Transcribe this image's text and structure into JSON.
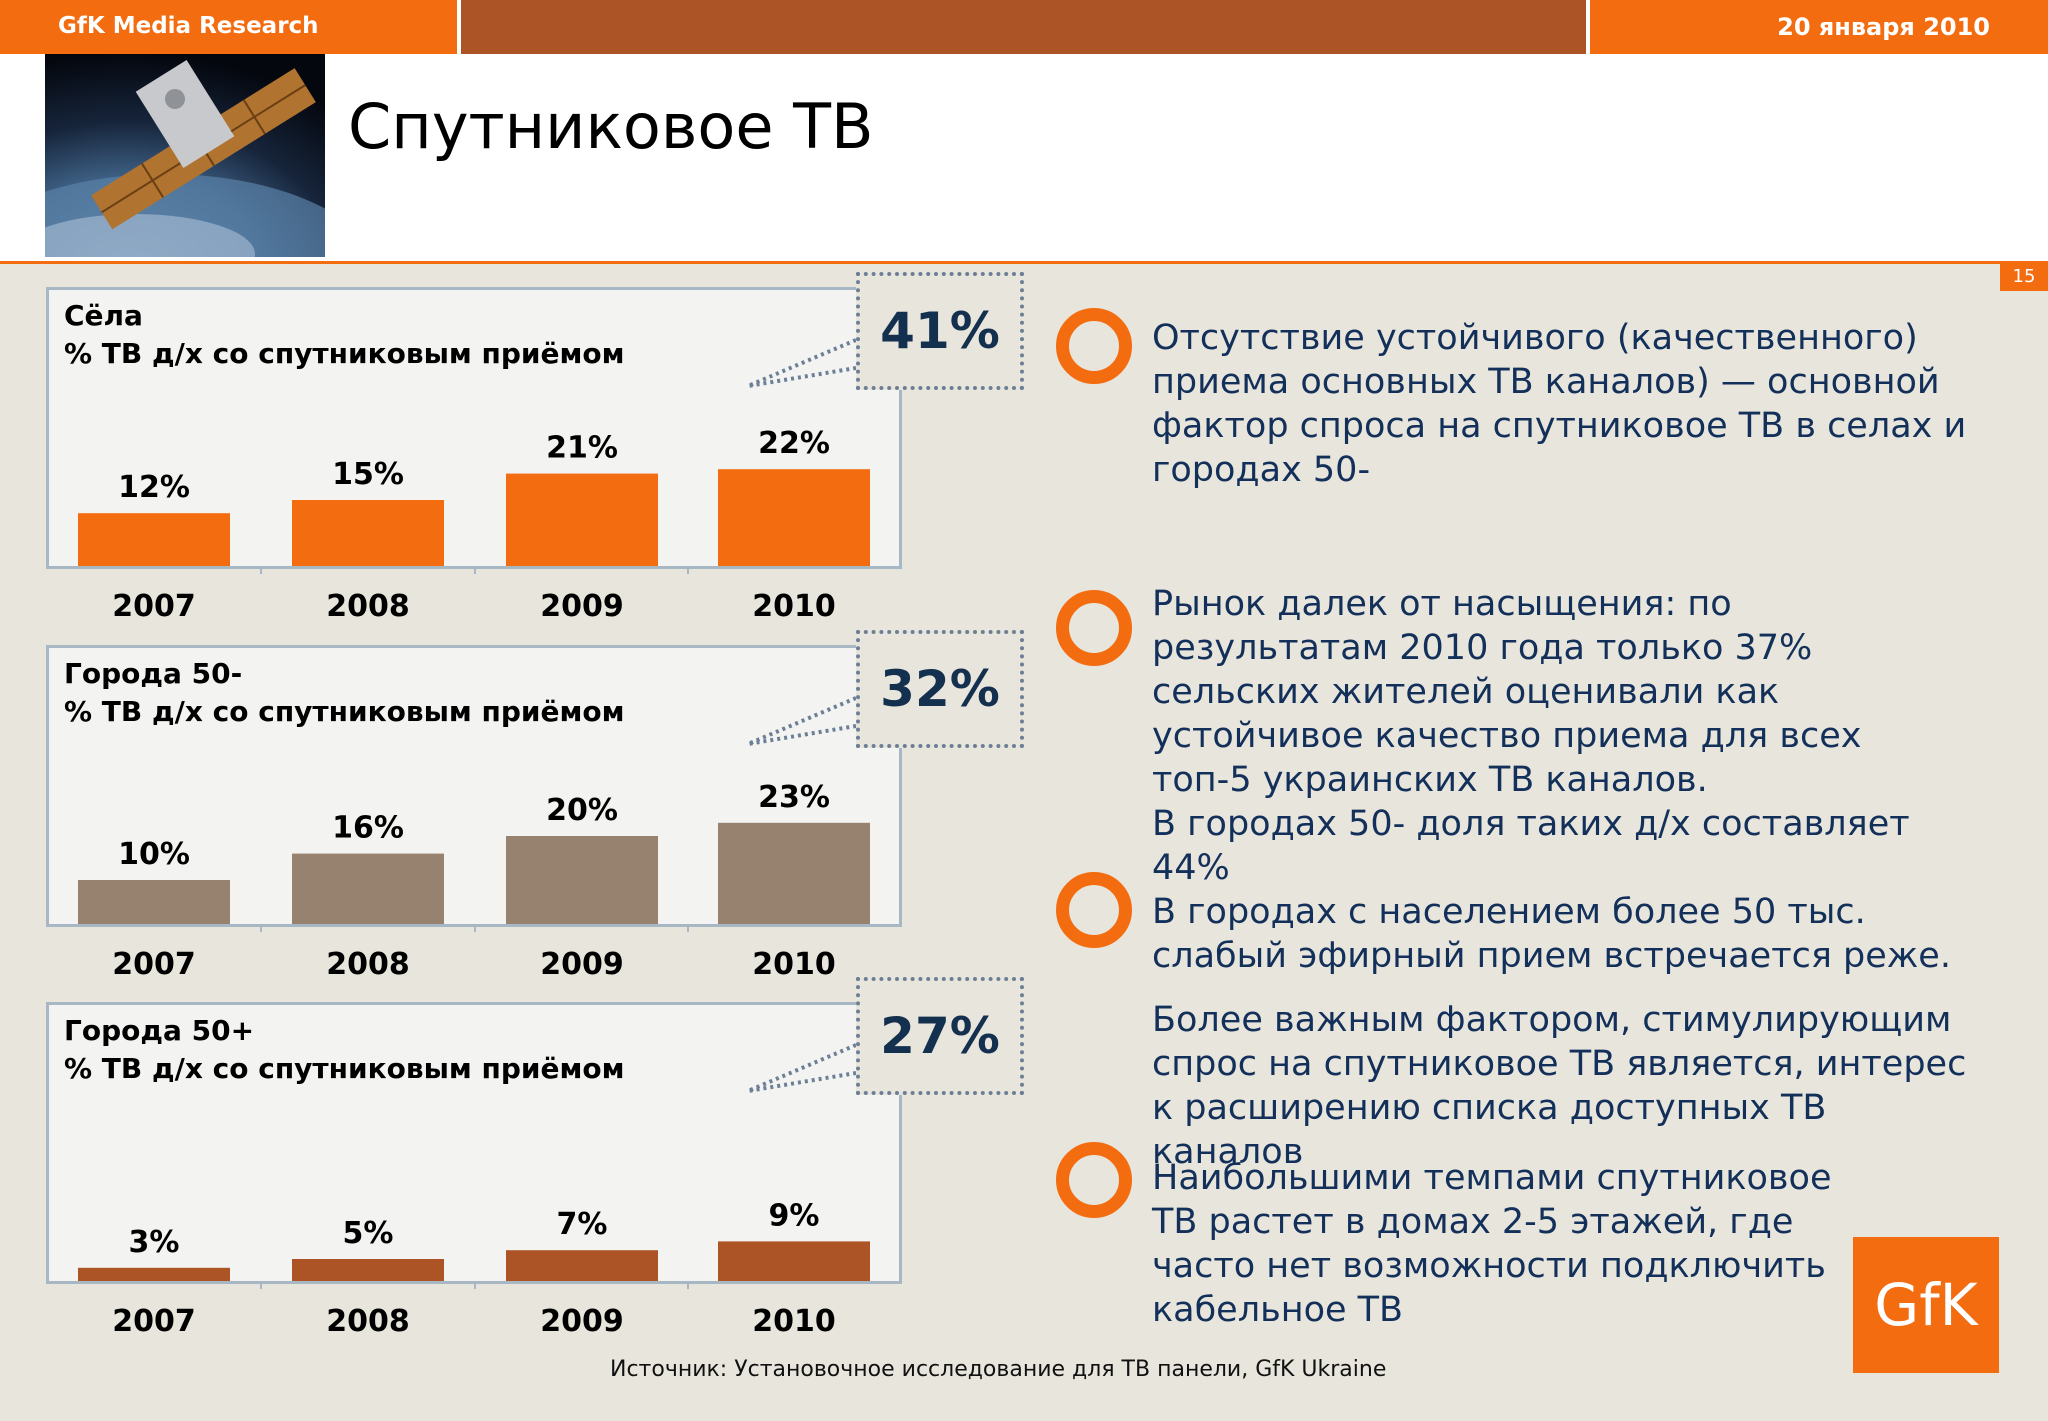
{
  "header": {
    "brand": "GfK Media Research",
    "date": "20 января 2010"
  },
  "title": "Спутниковое ТВ",
  "page_number": "15",
  "colors": {
    "orange": "#f46c10",
    "rust": "#ad5427",
    "taupe": "#96826f",
    "navy": "#13305a"
  },
  "chart_data": [
    {
      "type": "bar",
      "title": "Сёла",
      "subtitle": "% ТВ д/х со спутниковым приёмом",
      "categories": [
        "2007",
        "2008",
        "2009",
        "2010"
      ],
      "values": [
        12,
        15,
        21,
        22
      ],
      "value_labels": [
        "12%",
        "15%",
        "21%",
        "22%"
      ],
      "color": "#f46c10",
      "ylim": [
        0,
        30
      ],
      "callout": "41%"
    },
    {
      "type": "bar",
      "title": "Города 50-",
      "subtitle": "% ТВ д/х со спутниковым приёмом",
      "categories": [
        "2007",
        "2008",
        "2009",
        "2010"
      ],
      "values": [
        10,
        16,
        20,
        23
      ],
      "value_labels": [
        "10%",
        "16%",
        "20%",
        "23%"
      ],
      "color": "#96826f",
      "ylim": [
        0,
        30
      ],
      "callout": "32%"
    },
    {
      "type": "bar",
      "title": "Города 50+",
      "subtitle": "% ТВ д/х со спутниковым приёмом",
      "categories": [
        "2007",
        "2008",
        "2009",
        "2010"
      ],
      "values": [
        3,
        5,
        7,
        9
      ],
      "value_labels": [
        "3%",
        "5%",
        "7%",
        "9%"
      ],
      "color": "#ad5427",
      "ylim": [
        0,
        30
      ],
      "callout": "27%"
    }
  ],
  "bullets": [
    {
      "text": "Отсутствие устойчивого (качественного) приема основных ТВ каналов) — основной фактор спроса на спутниковое ТВ в селах и городах 50-"
    },
    {
      "text": "Рынок далек от насыщения: по результатам 2010 года только 37% сельских жителей оценивали как устойчивое качество приема для всех топ-5 украинских ТВ каналов.",
      "text2": "В городах 50- доля таких д/х составляет 44%"
    },
    {
      "text": "В городах с населением более 50 тыс. слабый эфирный прием встречается реже.",
      "text2": "Более важным фактором, стимулирующим спрос на спутниковое ТВ является, интерес к расширению списка доступных ТВ каналов"
    },
    {
      "text": "Наибольшими темпами спутниковое ТВ растет в домах  2-5 этажей, где часто нет возможности подключить кабельное ТВ"
    }
  ],
  "source": "Источник: Установочное исследование для ТВ панели, GfK Ukraine",
  "logo_text": "GfK"
}
